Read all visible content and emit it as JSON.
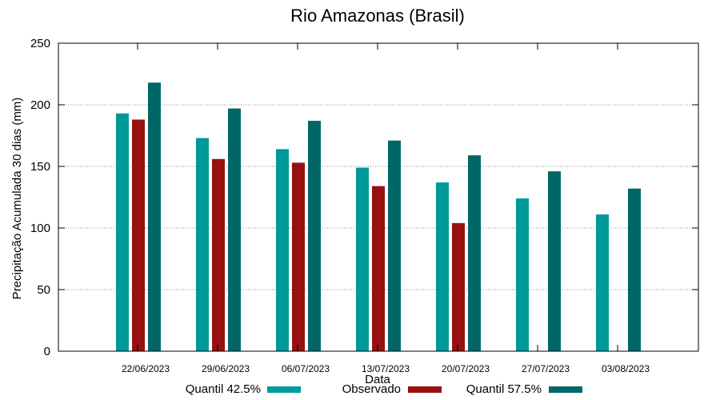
{
  "chart_data": {
    "type": "bar",
    "title": "Rio Amazonas (Brasil)",
    "xlabel": "Data",
    "ylabel": "Precipitação Acumulada 30 dias (mm)",
    "ylim": [
      0,
      250
    ],
    "yticks": [
      0,
      50,
      100,
      150,
      200,
      250
    ],
    "grid": true,
    "legend_position": "bottom",
    "categories": [
      "22/06/2023",
      "29/06/2023",
      "06/07/2023",
      "13/07/2023",
      "20/07/2023",
      "27/07/2023",
      "03/08/2023"
    ],
    "series": [
      {
        "name": "Quantil 42.5%",
        "color": "#009999",
        "values": [
          193,
          173,
          164,
          149,
          137,
          124,
          111
        ]
      },
      {
        "name": "Observado",
        "color": "#991010",
        "values": [
          188,
          156,
          153,
          134,
          104,
          null,
          null
        ]
      },
      {
        "name": "Quantil 57.5%",
        "color": "#006666",
        "values": [
          218,
          197,
          187,
          171,
          159,
          146,
          132
        ]
      }
    ]
  }
}
